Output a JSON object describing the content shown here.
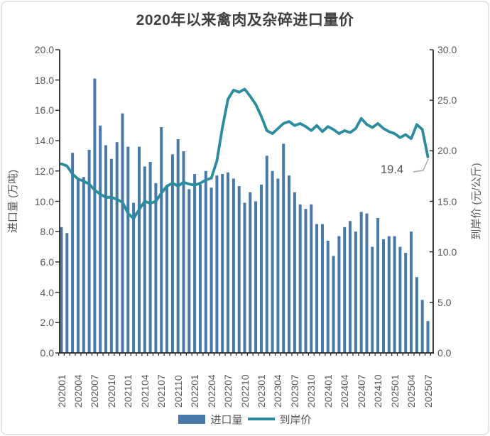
{
  "title": "2020年以来禽肉及杂碎进口量价",
  "axes": {
    "left_title": "进口量 (万吨)",
    "right_title": "到岸价 (元/公斤)",
    "left_ticks": [
      "0.0",
      "2.0",
      "4.0",
      "6.0",
      "8.0",
      "10.0",
      "12.0",
      "14.0",
      "16.0",
      "18.0",
      "20.0"
    ],
    "right_ticks": [
      "0.0",
      "5.0",
      "10.0",
      "15.0",
      "20.0",
      "25.0",
      "30.0"
    ]
  },
  "annotation": {
    "text": "19.4"
  },
  "colors": {
    "bar": "#4879A8",
    "line": "#2A8C9E",
    "axis": "#262626",
    "tick_text": "#595959",
    "title_text": "#3F3F3F",
    "leader": "#A6A6A6"
  },
  "chart_data": {
    "type": "bar+line combo",
    "title": "2020年以来禽肉及杂碎进口量价",
    "left_axis_label": "进口量 (万吨)",
    "right_axis_label": "到岸价 (元/公斤)",
    "left_ylim": [
      0,
      20
    ],
    "right_ylim": [
      0,
      30
    ],
    "grid": false,
    "legend_position": "bottom",
    "annotation_last_point": 19.4,
    "categories": [
      "202001",
      "202002",
      "202003",
      "202004",
      "202005",
      "202006",
      "202007",
      "202008",
      "202009",
      "202010",
      "202011",
      "202012",
      "202101",
      "202102",
      "202103",
      "202104",
      "202105",
      "202106",
      "202107",
      "202108",
      "202109",
      "202110",
      "202111",
      "202112",
      "202201",
      "202202",
      "202203",
      "202204",
      "202205",
      "202206",
      "202207",
      "202208",
      "202209",
      "202210",
      "202211",
      "202212",
      "202301",
      "202302",
      "202303",
      "202304",
      "202305",
      "202306",
      "202307",
      "202308",
      "202309",
      "202310",
      "202311",
      "202312",
      "202401",
      "202402",
      "202403",
      "202404",
      "202405",
      "202406",
      "202407",
      "202408",
      "202409",
      "202410",
      "202411",
      "202412",
      "202501",
      "202502",
      "202503",
      "202504",
      "202505",
      "202506",
      "202507"
    ],
    "x_tick_labels": [
      "202001",
      "202004",
      "202007",
      "202010",
      "202101",
      "202104",
      "202107",
      "202110",
      "202201",
      "202204",
      "202207",
      "202210",
      "202301",
      "202304",
      "202307",
      "202310",
      "202401",
      "202404",
      "202407",
      "202410",
      "202501",
      "202504",
      "202507"
    ],
    "x_tick_every": 3,
    "series": [
      {
        "name": "进口量",
        "type": "bar",
        "axis": "left",
        "values": [
          8.3,
          7.9,
          13.2,
          11.5,
          11.6,
          13.4,
          18.1,
          15.0,
          13.7,
          12.8,
          13.9,
          15.8,
          13.6,
          9.9,
          13.6,
          12.3,
          12.6,
          11.2,
          14.9,
          11.0,
          13.1,
          14.1,
          13.3,
          10.8,
          11.8,
          11.1,
          12.0,
          10.9,
          11.7,
          11.8,
          11.9,
          11.5,
          11.0,
          9.9,
          10.6,
          10.0,
          11.1,
          13.0,
          12.0,
          11.5,
          13.8,
          11.7,
          10.6,
          9.8,
          9.5,
          9.8,
          8.5,
          8.5,
          7.4,
          6.4,
          7.7,
          8.3,
          8.7,
          8.0,
          9.3,
          9.2,
          7.0,
          8.9,
          7.5,
          7.7,
          7.7,
          7.0,
          6.6,
          8.0,
          5.0,
          3.5,
          2.1
        ]
      },
      {
        "name": "到岸价",
        "type": "line",
        "axis": "right",
        "values": [
          18.7,
          18.5,
          17.7,
          17.2,
          17.0,
          16.7,
          16.1,
          15.7,
          15.4,
          15.4,
          15.2,
          14.9,
          13.8,
          13.3,
          14.2,
          15.0,
          14.8,
          15.0,
          15.8,
          16.5,
          16.8,
          16.5,
          16.9,
          16.7,
          16.6,
          16.8,
          17.1,
          17.3,
          19.0,
          22.3,
          25.1,
          26.0,
          25.8,
          26.1,
          25.4,
          24.6,
          23.4,
          22.0,
          21.7,
          22.2,
          22.7,
          22.9,
          22.5,
          22.7,
          22.4,
          22.0,
          22.5,
          21.9,
          22.4,
          22.1,
          21.7,
          22.0,
          21.8,
          22.2,
          23.2,
          22.6,
          22.3,
          22.7,
          22.2,
          21.9,
          21.7,
          21.3,
          21.6,
          21.2,
          22.6,
          22.1,
          19.4
        ]
      }
    ]
  }
}
